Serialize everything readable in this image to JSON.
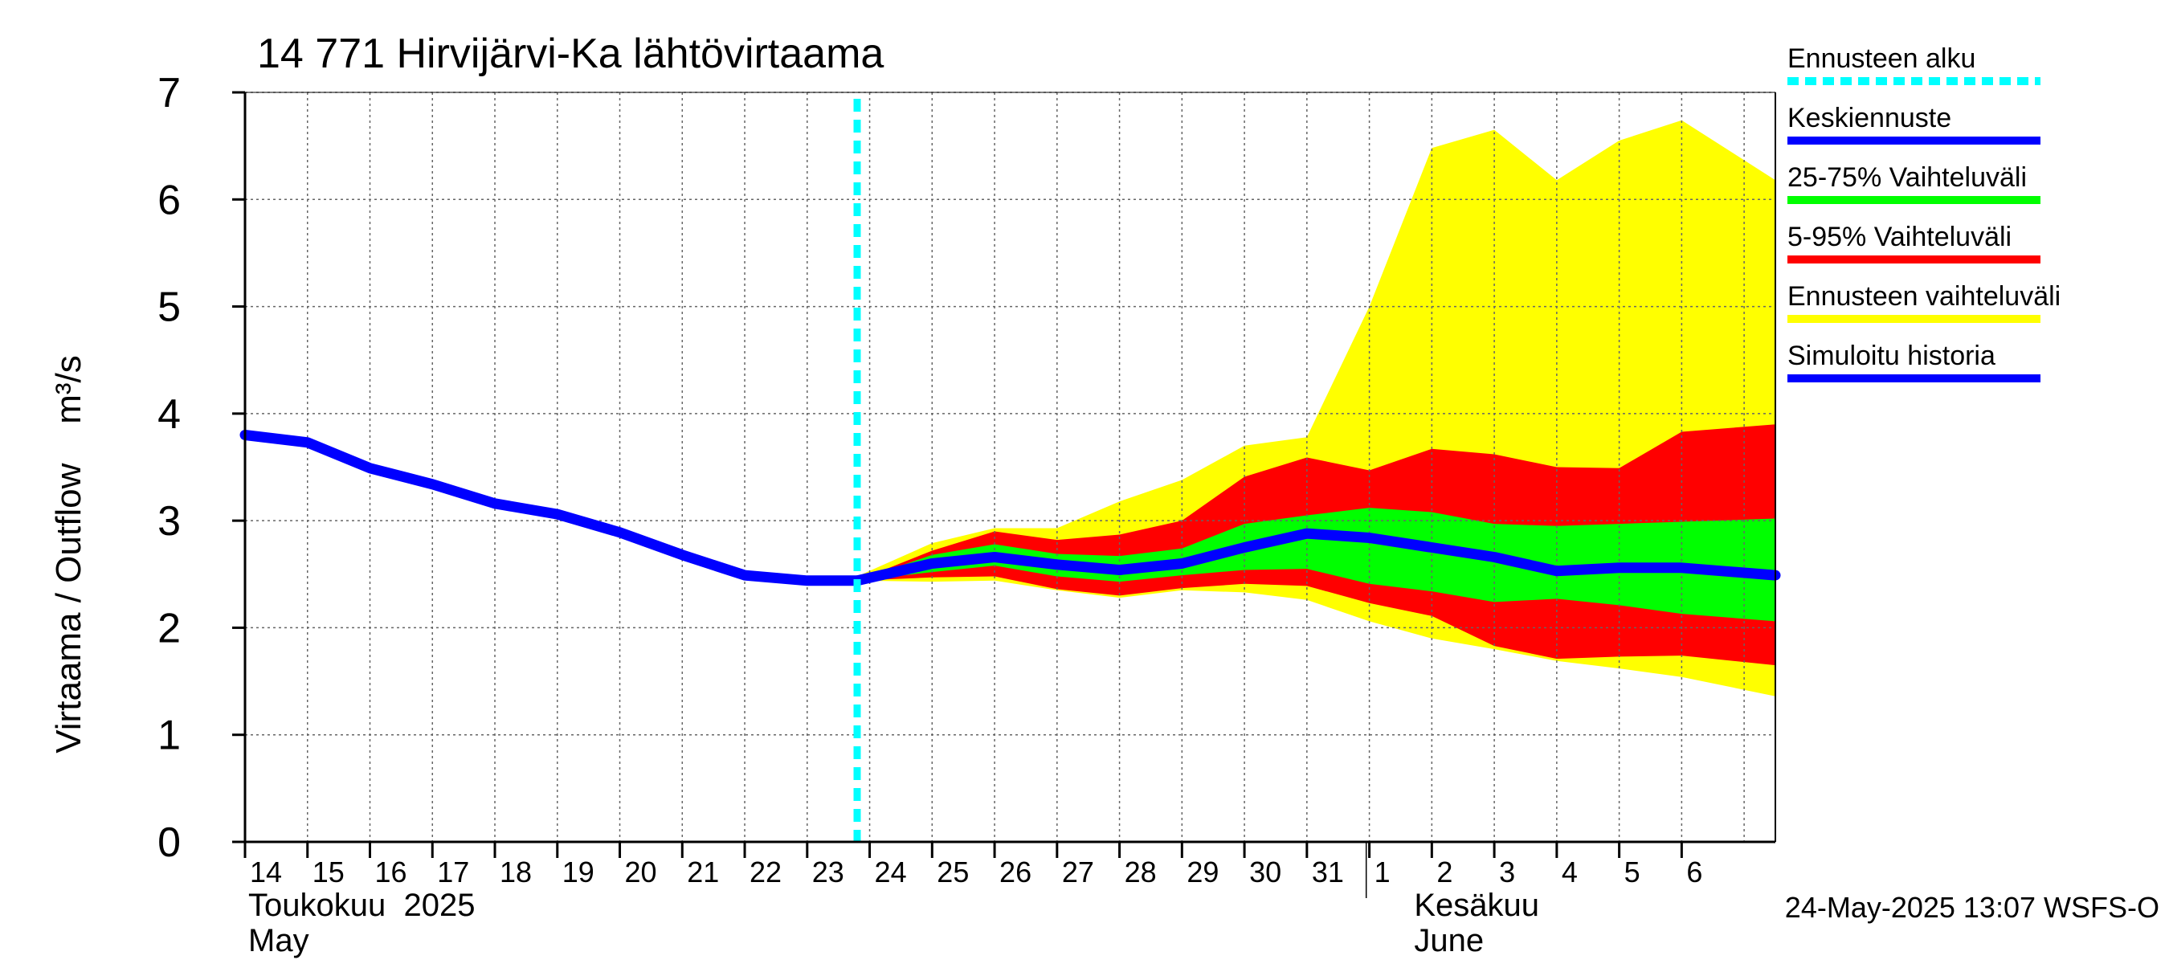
{
  "chart_data": {
    "type": "area",
    "title": "14 771 Hirvijärvi-Ka lähtövirtaama",
    "ylabel": "Virtaama / Outflow    m³/s",
    "ylim": [
      0,
      7
    ],
    "yticks": [
      "0",
      "1",
      "2",
      "3",
      "4",
      "5",
      "6",
      "7"
    ],
    "grid": true,
    "legend_position": "right",
    "day_labels": [
      "14",
      "15",
      "16",
      "17",
      "18",
      "19",
      "20",
      "21",
      "22",
      "23",
      "24",
      "25",
      "26",
      "27",
      "28",
      "29",
      "30",
      "31",
      "1",
      "2",
      "3",
      "4",
      "5",
      "6"
    ],
    "month_labels": [
      {
        "line1": "Toukokuu  2025",
        "line2": "May"
      },
      {
        "line1": "Kesäkuu",
        "line2": "June"
      }
    ],
    "forecast_start_day": 23.8,
    "footer": "24-May-2025 13:07 WSFS-O",
    "series": [
      {
        "name": "Simuloitu historia",
        "color": "#0000ff",
        "x": [
          14,
          15,
          16,
          17,
          18,
          19,
          20,
          21,
          22,
          23,
          23.8
        ],
        "values": [
          3.8,
          3.73,
          3.49,
          3.34,
          3.16,
          3.06,
          2.89,
          2.68,
          2.49,
          2.44,
          2.44
        ]
      },
      {
        "name": "Keskiennuste",
        "color": "#0000ff",
        "x": [
          23.8,
          25,
          26,
          27,
          28,
          29,
          30,
          31,
          32,
          33,
          34,
          35,
          36,
          37,
          38.5
        ],
        "values": [
          2.44,
          2.6,
          2.66,
          2.59,
          2.54,
          2.6,
          2.75,
          2.88,
          2.84,
          2.75,
          2.66,
          2.53,
          2.56,
          2.56,
          2.49
        ]
      }
    ],
    "bands": [
      {
        "name": "Ennusteen vaihteluväli",
        "color": "#ffff00",
        "x": [
          22.8,
          23.8,
          25,
          26,
          27,
          28,
          29,
          30,
          31,
          32,
          33,
          34,
          35,
          36,
          37,
          38.5
        ],
        "upper": [
          2.44,
          2.48,
          2.79,
          2.93,
          2.93,
          3.18,
          3.38,
          3.7,
          3.78,
          5.0,
          6.48,
          6.65,
          6.18,
          6.55,
          6.74,
          6.18
        ],
        "lower": [
          2.44,
          2.44,
          2.43,
          2.44,
          2.35,
          2.28,
          2.35,
          2.33,
          2.26,
          2.06,
          1.9,
          1.8,
          1.69,
          1.62,
          1.54,
          1.36
        ]
      },
      {
        "name": "5-95% Vaihteluväli",
        "color": "#ff0000",
        "x": [
          23.8,
          25,
          26,
          27,
          28,
          29,
          30,
          31,
          32,
          33,
          34,
          35,
          36,
          37,
          38.5
        ],
        "upper": [
          2.44,
          2.72,
          2.9,
          2.82,
          2.87,
          3.0,
          3.41,
          3.59,
          3.47,
          3.67,
          3.62,
          3.5,
          3.49,
          3.83,
          3.9
        ],
        "lower": [
          2.44,
          2.47,
          2.48,
          2.36,
          2.3,
          2.37,
          2.41,
          2.39,
          2.23,
          2.11,
          1.83,
          1.71,
          1.73,
          1.74,
          1.65
        ]
      },
      {
        "name": "25-75% Vaihteluväli",
        "color": "#00ff00",
        "x": [
          23.8,
          25,
          26,
          27,
          28,
          29,
          30,
          31,
          32,
          33,
          34,
          35,
          36,
          37,
          38.5
        ],
        "upper": [
          2.44,
          2.68,
          2.78,
          2.69,
          2.67,
          2.74,
          2.97,
          3.05,
          3.12,
          3.08,
          2.97,
          2.95,
          2.97,
          2.99,
          3.02
        ],
        "lower": [
          2.44,
          2.52,
          2.58,
          2.48,
          2.43,
          2.49,
          2.54,
          2.55,
          2.41,
          2.34,
          2.24,
          2.27,
          2.21,
          2.13,
          2.06
        ]
      }
    ],
    "legend": [
      {
        "label": "Ennusteen alku",
        "color": "#00ffff",
        "style": "dashed"
      },
      {
        "label": "Keskiennuste",
        "color": "#0000ff",
        "style": "solid"
      },
      {
        "label": "25-75% Vaihteluväli",
        "color": "#00ff00",
        "style": "solid"
      },
      {
        "label": "5-95% Vaihteluväli",
        "color": "#ff0000",
        "style": "solid"
      },
      {
        "label": "Ennusteen vaihteluväli",
        "color": "#ffff00",
        "style": "solid"
      },
      {
        "label": "Simuloitu historia",
        "color": "#0000ff",
        "style": "solid"
      }
    ]
  }
}
